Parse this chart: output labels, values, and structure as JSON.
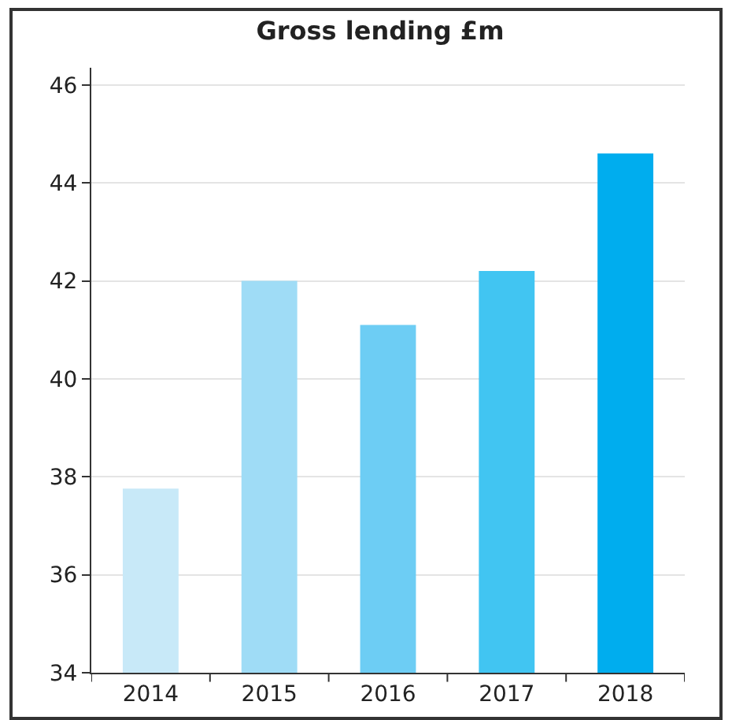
{
  "chart_data": {
    "type": "bar",
    "title": "Gross lending £m",
    "categories": [
      "2014",
      "2015",
      "2016",
      "2017",
      "2018"
    ],
    "values": [
      37.76,
      42.0,
      41.1,
      42.2,
      44.6
    ],
    "colors": [
      "#c8e9f8",
      "#9fdcf6",
      "#6dcdf4",
      "#41c5f2",
      "#00adee"
    ],
    "ylim": [
      34,
      46.35
    ],
    "yticks": [
      34,
      36,
      38,
      40,
      42,
      44,
      46
    ],
    "grid": "y"
  }
}
